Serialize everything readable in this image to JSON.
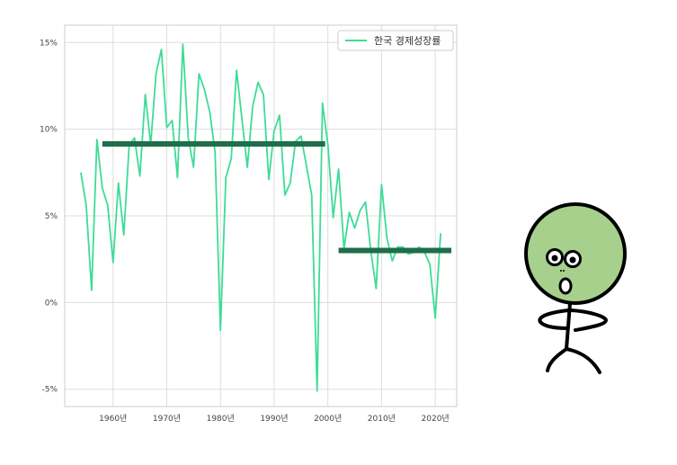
{
  "colors": {
    "line": "#3ddc97",
    "avg_line": "#1f6e4a",
    "grid": "#dddddd",
    "axes": "#cccccc",
    "character_face": "#a6d08c"
  },
  "character": {
    "icon": "surprised-stick-figure-icon"
  },
  "chart_data": {
    "type": "line",
    "title": "",
    "xlabel": "",
    "ylabel": "",
    "xlim": [
      1951,
      2024
    ],
    "ylim": [
      -6,
      16
    ],
    "grid": true,
    "legend_position": "top-right",
    "x_ticks": [
      1960,
      1970,
      1980,
      1990,
      2000,
      2010,
      2020
    ],
    "x_tick_labels": [
      "1960년",
      "1970년",
      "1980년",
      "1990년",
      "2000년",
      "2010년",
      "2020년"
    ],
    "y_ticks": [
      -5,
      0,
      5,
      10,
      15
    ],
    "y_tick_labels": [
      "-5%",
      "0%",
      "5%",
      "10%",
      "15%"
    ],
    "series": [
      {
        "name": "한국 경제성장률",
        "x": [
          1954,
          1955,
          1956,
          1957,
          1958,
          1959,
          1960,
          1961,
          1962,
          1963,
          1964,
          1965,
          1966,
          1967,
          1968,
          1969,
          1970,
          1971,
          1972,
          1973,
          1974,
          1975,
          1976,
          1977,
          1978,
          1979,
          1980,
          1981,
          1982,
          1983,
          1984,
          1985,
          1986,
          1987,
          1988,
          1989,
          1990,
          1991,
          1992,
          1993,
          1994,
          1995,
          1996,
          1997,
          1998,
          1999,
          2000,
          2001,
          2002,
          2003,
          2004,
          2005,
          2006,
          2007,
          2008,
          2009,
          2010,
          2011,
          2012,
          2013,
          2014,
          2015,
          2016,
          2017,
          2018,
          2019,
          2020,
          2021
        ],
        "values": [
          7.5,
          5.6,
          0.7,
          9.4,
          6.6,
          5.6,
          2.3,
          6.9,
          3.9,
          9.1,
          9.5,
          7.3,
          12.0,
          9.1,
          13.2,
          14.6,
          10.1,
          10.5,
          7.2,
          14.9,
          9.5,
          7.8,
          13.2,
          12.3,
          11.0,
          8.7,
          -1.6,
          7.2,
          8.3,
          13.4,
          10.6,
          7.8,
          11.3,
          12.7,
          12.0,
          7.1,
          9.9,
          10.8,
          6.2,
          6.9,
          9.3,
          9.6,
          7.9,
          6.2,
          -5.1,
          11.5,
          9.1,
          4.9,
          7.7,
          3.1,
          5.2,
          4.3,
          5.3,
          5.8,
          3.0,
          0.8,
          6.8,
          3.7,
          2.4,
          3.2,
          3.2,
          2.8,
          2.9,
          3.2,
          2.9,
          2.2,
          -0.9,
          4.0
        ]
      }
    ],
    "averages": [
      {
        "x_start": 1958,
        "x_end": 1999.5,
        "value": 9.15
      },
      {
        "x_start": 2002,
        "x_end": 2023,
        "value": 3.0
      }
    ]
  }
}
